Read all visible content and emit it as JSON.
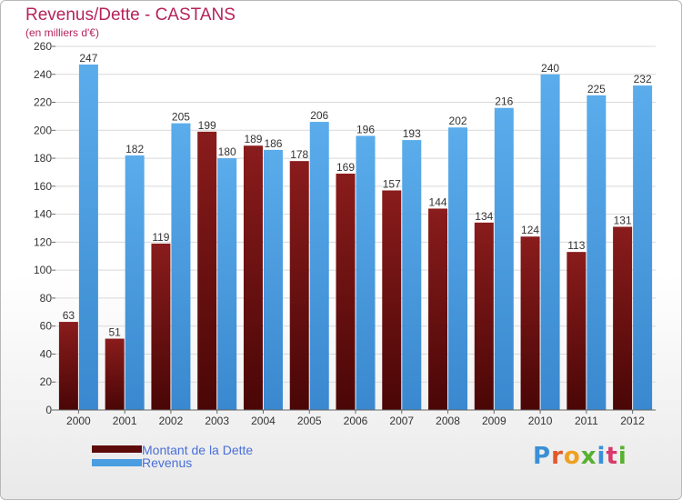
{
  "chart_data": {
    "type": "bar",
    "title": "Revenus/Dette - CASTANS",
    "subtitle": "(en milliers d'€)",
    "xlabel": "",
    "ylabel": "",
    "ylim": [
      0,
      260
    ],
    "yticks": [
      0,
      20,
      40,
      60,
      80,
      100,
      120,
      140,
      160,
      180,
      200,
      220,
      240,
      260
    ],
    "grid": true,
    "legend_position": "bottom-left",
    "categories": [
      "2000",
      "2001",
      "2002",
      "2003",
      "2004",
      "2005",
      "2006",
      "2007",
      "2008",
      "2009",
      "2010",
      "2011",
      "2012"
    ],
    "series": [
      {
        "name": "Montant de la Dette",
        "color": "#6e0f0f",
        "values": [
          63,
          51,
          119,
          199,
          189,
          178,
          169,
          157,
          144,
          134,
          124,
          113,
          131
        ]
      },
      {
        "name": "Revenus",
        "color": "#4a9de0",
        "values": [
          247,
          182,
          205,
          180,
          186,
          206,
          196,
          193,
          202,
          216,
          240,
          225,
          232
        ]
      }
    ]
  },
  "legend": {
    "debt_label": "Montant de la Dette",
    "revenue_label": "Revenus"
  },
  "brand": {
    "logo_text": "Proxiti"
  }
}
